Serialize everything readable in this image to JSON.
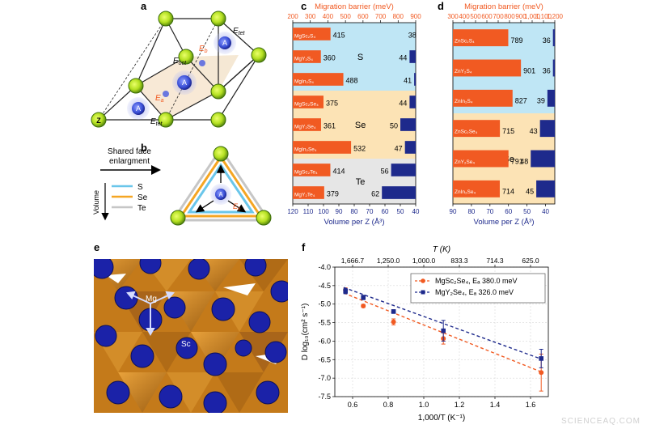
{
  "panels": {
    "a": "a",
    "b": "b",
    "c": "c",
    "d": "d",
    "e": "e",
    "f": "f"
  },
  "panel_a": {
    "site_A": "A",
    "site_Z": "Z",
    "E_tet": "E",
    "E_tet_sub": "tet",
    "E_oct": "E",
    "E_oct_sub": "oct",
    "E_a": "E",
    "E_a_sub": "a",
    "E_b": "E",
    "E_b_sub": "b"
  },
  "panel_b": {
    "arrow_label_line1": "Shared face",
    "arrow_label_line2": "enlargment",
    "volume_label": "Volume",
    "legend": [
      "S",
      "Se",
      "Te"
    ],
    "site_A": "A",
    "E_b": "E",
    "E_b_sub": "b"
  },
  "colors": {
    "orange": "#f15a22",
    "navy": "#1e2a8c",
    "s_bg": "#bfe6f5",
    "se_bg": "#fce3b5",
    "te_bg": "#e6e6e6",
    "green": "#9ad027",
    "s_line": "#6ac6ea",
    "se_line": "#f5a623",
    "te_line": "#c6c6c6"
  },
  "panel_c": {
    "top_axis_label": "Migration barrier (meV)",
    "top_ticks": [
      "200",
      "300",
      "400",
      "500",
      "600",
      "700",
      "800",
      "900"
    ],
    "bottom_axis_label": "Volume per Z (Å³)",
    "bottom_ticks": [
      "120",
      "110",
      "100",
      "90",
      "80",
      "70",
      "60",
      "50",
      "40"
    ],
    "groups": [
      "S",
      "Se",
      "Te"
    ]
  },
  "panel_d": {
    "top_axis_label": "Migration barrier (meV)",
    "top_ticks": [
      "300",
      "400",
      "500",
      "600",
      "700",
      "800",
      "900",
      "1,000",
      "1,100",
      "1,200"
    ],
    "bottom_axis_label": "Volume per Z (Å³)",
    "bottom_ticks": [
      "90",
      "80",
      "70",
      "60",
      "50",
      "40"
    ],
    "groups": [
      "S",
      "Se"
    ]
  },
  "panel_e": {
    "label_mg": "Mg",
    "label_sc": "Sc"
  },
  "panel_f": {
    "top_axis_label": "T (K)",
    "top_ticks": [
      "1,666.7",
      "1,250.0",
      "1,000.0",
      "833.3",
      "714.3",
      "625.0"
    ],
    "x_axis_label": "1,000/T (K⁻¹)",
    "y_axis_label": "D log₁₀(cm² s⁻¹)",
    "x_ticks": [
      "0.6",
      "0.8",
      "1.0",
      "1.2",
      "1.4",
      "1.6"
    ],
    "y_ticks": [
      "-4.0",
      "-4.5",
      "-5.0",
      "-5.5",
      "-6.0",
      "-6.5",
      "-7.0",
      "-7.5"
    ],
    "legend": [
      "MgSc₂Se₄, Eₐ 380.0 meV",
      "MgY₂Se₄, Eₐ 326.0 meV"
    ]
  },
  "watermark": "SCIENCEAQ.COM",
  "chart_data": [
    {
      "type": "bar",
      "panel": "c",
      "title": "",
      "top_xlabel": "Migration barrier (meV)",
      "bottom_xlabel": "Volume per Z (Å³)",
      "migration_barrier_xlim": [
        200,
        900
      ],
      "volume_xlim": [
        120,
        40
      ],
      "categories": [
        "MgSc₂S₄",
        "MgY₂S₄",
        "MgIn₂S₄",
        "MgSc₂Se₄",
        "MgY₂Se₄",
        "MgIn₂Se₄",
        "MgSc₂Te₄",
        "MgY₂Te₄"
      ],
      "category_groups": [
        "S",
        "S",
        "S",
        "Se",
        "Se",
        "Se",
        "Te",
        "Te"
      ],
      "series": [
        {
          "name": "Migration barrier (meV)",
          "values": [
            415,
            360,
            488,
            375,
            361,
            532,
            414,
            379
          ]
        },
        {
          "name": "Volume per Z (Å³)",
          "values": [
            38,
            44,
            41,
            44,
            50,
            47,
            56,
            62
          ]
        }
      ]
    },
    {
      "type": "bar",
      "panel": "d",
      "title": "",
      "top_xlabel": "Migration barrier (meV)",
      "bottom_xlabel": "Volume per Z (Å³)",
      "migration_barrier_xlim": [
        300,
        1200
      ],
      "volume_xlim": [
        90,
        35
      ],
      "categories": [
        "ZnSc₂S₄",
        "ZnY₂S₄",
        "ZnIn₂S₄",
        "ZnSc₂Se₄",
        "ZnY₂Se₄",
        "ZnIn₂Se₄"
      ],
      "category_groups": [
        "S",
        "S",
        "S",
        "Se",
        "Se",
        "Se"
      ],
      "series": [
        {
          "name": "Migration barrier (meV)",
          "values": [
            789,
            901,
            827,
            715,
            791,
            714
          ]
        },
        {
          "name": "Volume per Z (Å³)",
          "values": [
            36,
            36,
            39,
            43,
            48,
            45
          ]
        }
      ]
    },
    {
      "type": "scatter",
      "panel": "f",
      "title": "",
      "xlabel": "1,000/T (K⁻¹)",
      "ylabel": "D log₁₀(cm² s⁻¹)",
      "xlim": [
        0.5,
        1.7
      ],
      "ylim": [
        -7.5,
        -4.0
      ],
      "grid": true,
      "legend_position": "top-right",
      "series": [
        {
          "name": "MgSc₂Se₄, Eₐ 380.0 meV",
          "color": "#f15a22",
          "x": [
            0.56,
            0.66,
            0.83,
            1.11,
            1.66
          ],
          "y": [
            -4.62,
            -5.05,
            -5.48,
            -5.93,
            -6.85
          ],
          "yerr": [
            0.06,
            0.04,
            0.08,
            0.15,
            0.5
          ],
          "fit": [
            [
              0.55,
              -4.7
            ],
            [
              1.67,
              -6.85
            ]
          ]
        },
        {
          "name": "MgY₂Se₄, Eₐ 326.0 meV",
          "color": "#1e2a8c",
          "x": [
            0.56,
            0.66,
            0.83,
            1.11,
            1.66
          ],
          "y": [
            -4.65,
            -4.82,
            -5.2,
            -5.72,
            -6.47
          ],
          "yerr": [
            0.07,
            0.06,
            0.05,
            0.28,
            0.25
          ],
          "fit": [
            [
              0.55,
              -4.55
            ],
            [
              1.67,
              -6.5
            ]
          ]
        }
      ]
    }
  ]
}
